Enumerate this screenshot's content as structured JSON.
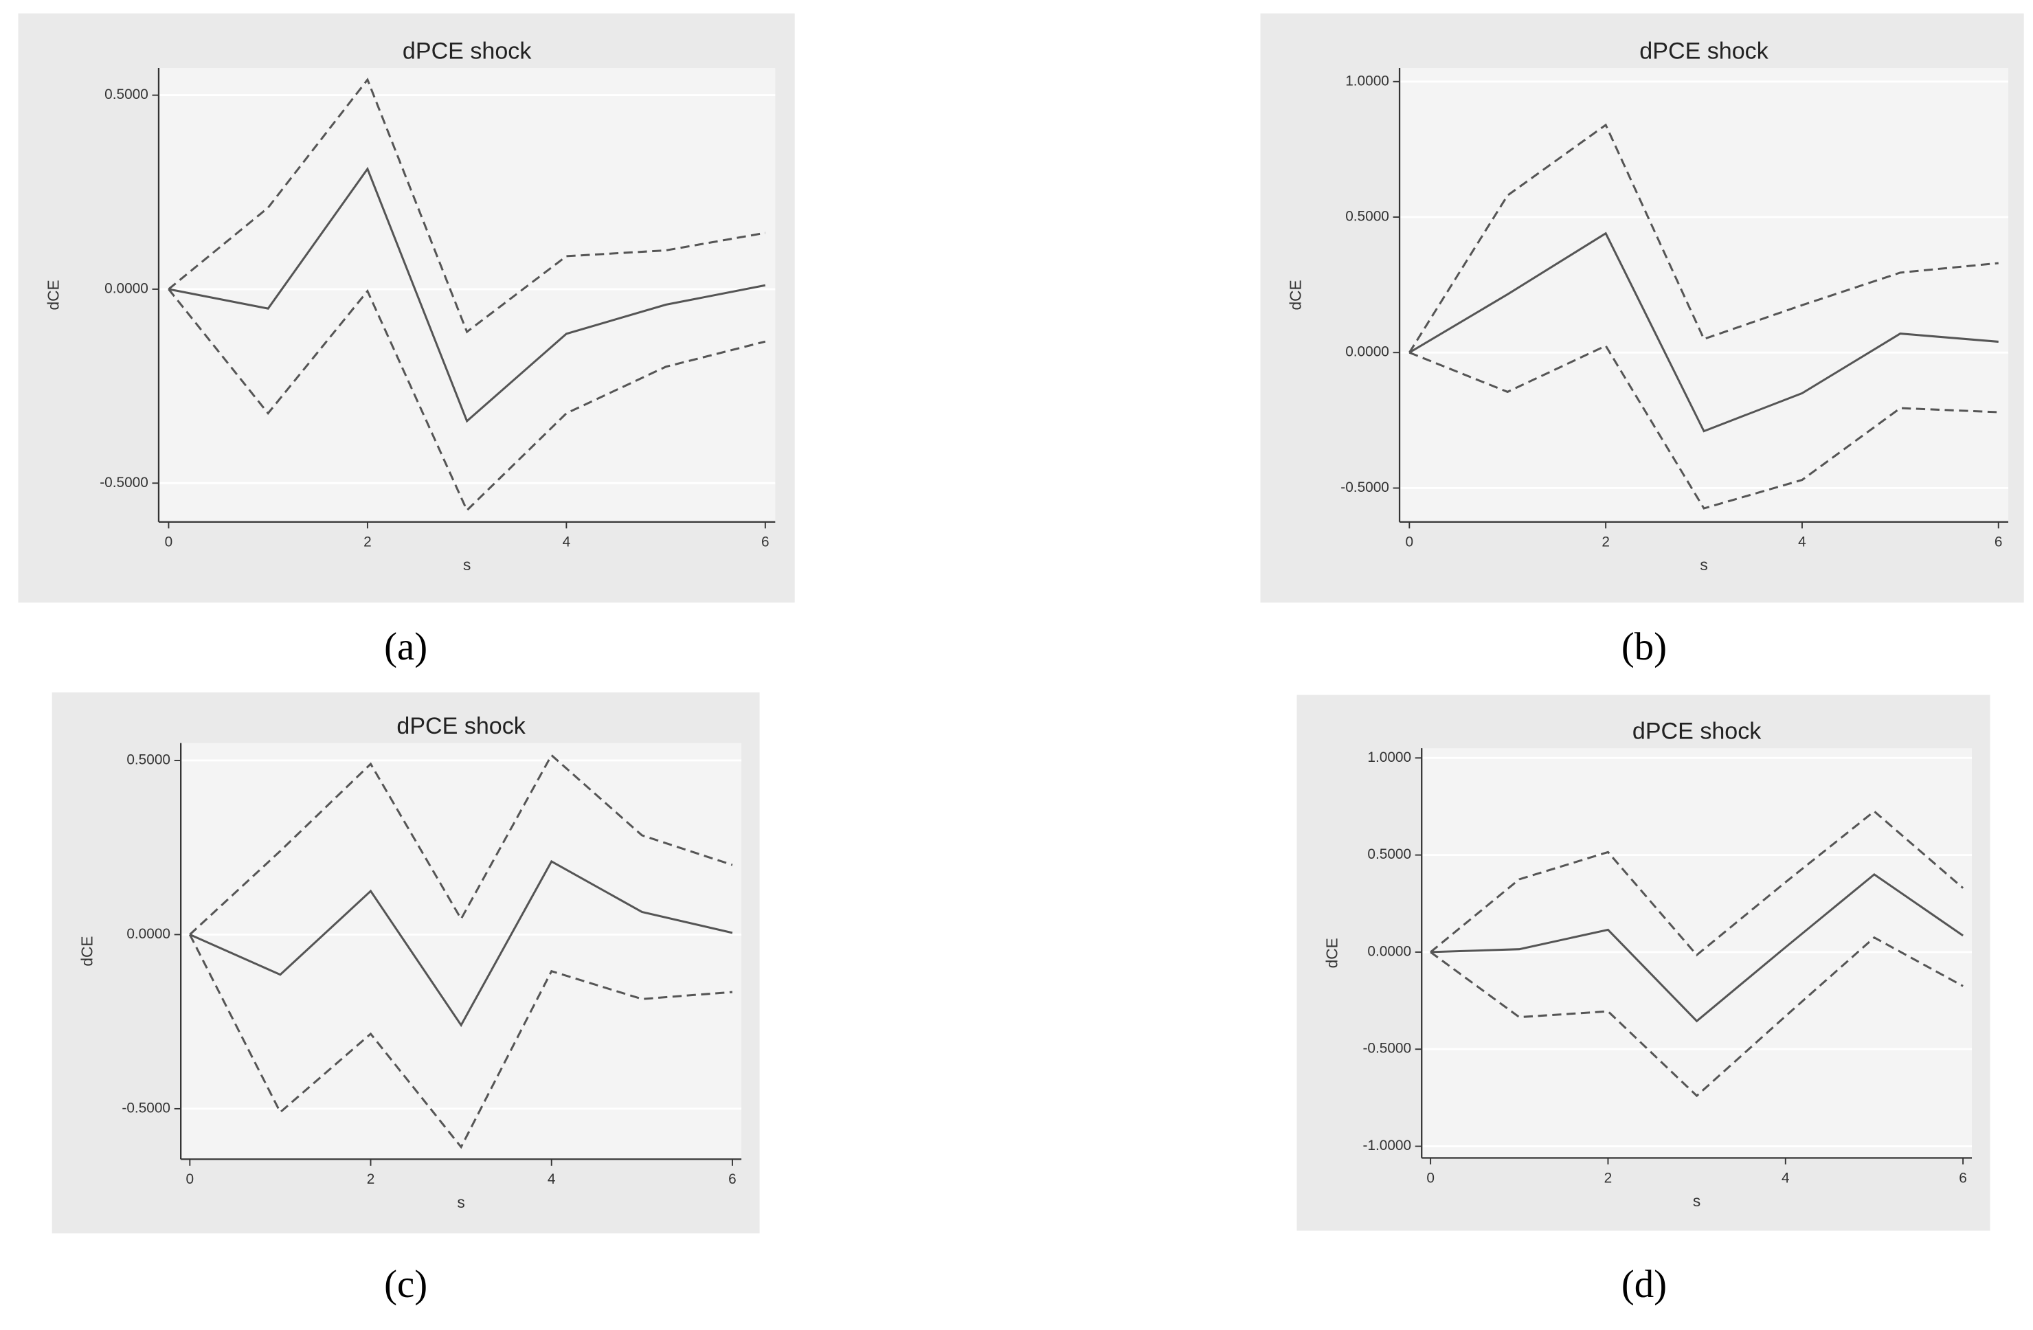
{
  "chart_data": [
    {
      "type": "line",
      "title": "dPCE shock",
      "caption": "(a)",
      "x_label": "s",
      "y_label": "dCE",
      "grid": true,
      "x": [
        0,
        1,
        2,
        3,
        4,
        5,
        6
      ],
      "xlim": [
        -0.1,
        6.1
      ],
      "xticks": [
        0,
        2,
        4,
        6
      ],
      "ylim": [
        -0.6,
        0.57
      ],
      "yticks": [
        {
          "value": -0.5,
          "label": "-0.5000"
        },
        {
          "value": 0,
          "label": "0.0000"
        },
        {
          "value": 0.5,
          "label": "0.5000"
        }
      ],
      "series": [
        {
          "color": "#555555",
          "style": "solid",
          "values": [
            0,
            -0.05,
            0.31,
            -0.34,
            -0.115,
            -0.04,
            0.01
          ]
        },
        {
          "color": "#555555",
          "style": "dashed",
          "values": [
            0,
            0.21,
            0.54,
            -0.11,
            0.085,
            0.1,
            0.145
          ]
        },
        {
          "color": "#555555",
          "style": "dashed",
          "values": [
            0,
            -0.32,
            -0.005,
            -0.57,
            -0.32,
            -0.2,
            -0.135
          ]
        }
      ]
    },
    {
      "type": "line",
      "title": "dPCE shock",
      "caption": "(b)",
      "x_label": "s",
      "y_label": "dCE",
      "grid": true,
      "x": [
        0,
        1,
        2,
        3,
        4,
        5,
        6
      ],
      "xlim": [
        -0.1,
        6.1
      ],
      "xticks": [
        0,
        2,
        4,
        6
      ],
      "ylim": [
        -0.625,
        1.05
      ],
      "yticks": [
        {
          "value": -0.5,
          "label": "-0.5000"
        },
        {
          "value": 0,
          "label": "0.0000"
        },
        {
          "value": 0.5,
          "label": "0.5000"
        },
        {
          "value": 1,
          "label": "1.0000"
        }
      ],
      "series": [
        {
          "color": "#555555",
          "style": "solid",
          "values": [
            0,
            0.215,
            0.44,
            -0.29,
            -0.15,
            0.07,
            0.04
          ]
        },
        {
          "color": "#555555",
          "style": "dashed",
          "values": [
            0,
            0.58,
            0.84,
            0.05,
            0.175,
            0.295,
            0.33
          ]
        },
        {
          "color": "#555555",
          "style": "dashed",
          "values": [
            0,
            -0.145,
            0.025,
            -0.575,
            -0.47,
            -0.205,
            -0.22
          ]
        }
      ]
    },
    {
      "type": "line",
      "title": "dPCE shock",
      "caption": "(c)",
      "x_label": "s",
      "y_label": "dCE",
      "grid": true,
      "x": [
        0,
        1,
        2,
        3,
        4,
        5,
        6
      ],
      "xlim": [
        -0.1,
        6.1
      ],
      "xticks": [
        0,
        2,
        4,
        6
      ],
      "ylim": [
        -0.645,
        0.55
      ],
      "yticks": [
        {
          "value": -0.5,
          "label": "-0.5000"
        },
        {
          "value": 0,
          "label": "0.0000"
        },
        {
          "value": 0.5,
          "label": "0.5000"
        }
      ],
      "series": [
        {
          "color": "#555555",
          "style": "solid",
          "values": [
            0,
            -0.115,
            0.125,
            -0.26,
            0.21,
            0.065,
            0.005
          ]
        },
        {
          "color": "#555555",
          "style": "dashed",
          "values": [
            0,
            0.24,
            0.49,
            0.045,
            0.515,
            0.285,
            0.2
          ]
        },
        {
          "color": "#555555",
          "style": "dashed",
          "values": [
            0,
            -0.51,
            -0.285,
            -0.61,
            -0.105,
            -0.185,
            -0.165
          ]
        }
      ]
    },
    {
      "type": "line",
      "title": "dPCE shock",
      "caption": "(d)",
      "x_label": "s",
      "y_label": "dCE",
      "grid": true,
      "x": [
        0,
        1,
        2,
        3,
        4,
        5,
        6
      ],
      "xlim": [
        -0.1,
        6.1
      ],
      "xticks": [
        0,
        2,
        4,
        6
      ],
      "ylim": [
        -1.06,
        1.05
      ],
      "yticks": [
        {
          "value": -1,
          "label": "-1.0000"
        },
        {
          "value": -0.5,
          "label": "-0.5000"
        },
        {
          "value": 0,
          "label": "0.0000"
        },
        {
          "value": 0.5,
          "label": "0.5000"
        },
        {
          "value": 1,
          "label": "1.0000"
        }
      ],
      "series": [
        {
          "color": "#555555",
          "style": "solid",
          "values": [
            0,
            0.015,
            0.115,
            -0.355,
            0.025,
            0.4,
            0.085
          ]
        },
        {
          "color": "#555555",
          "style": "dashed",
          "values": [
            0,
            0.375,
            0.515,
            -0.015,
            0.36,
            0.725,
            0.33
          ]
        },
        {
          "color": "#555555",
          "style": "dashed",
          "values": [
            0,
            -0.335,
            -0.305,
            -0.74,
            -0.33,
            0.075,
            -0.175
          ]
        }
      ]
    }
  ]
}
